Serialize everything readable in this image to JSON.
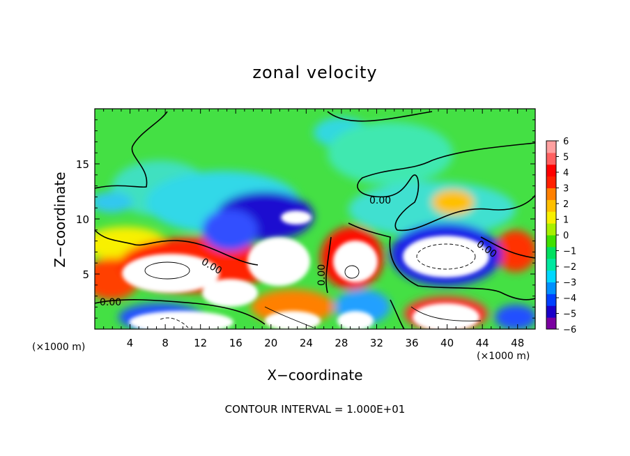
{
  "chart_data": {
    "type": "heatmap",
    "title": "zonal velocity",
    "xlabel": "X−coordinate",
    "ylabel": "Z−coordinate",
    "x_unit_label": "(×1000 m)",
    "x_ticks": [
      4,
      8,
      12,
      16,
      20,
      24,
      28,
      32,
      36,
      40,
      44,
      48
    ],
    "y_ticks": [
      5,
      10,
      15
    ],
    "xlim": [
      0,
      50
    ],
    "ylim": [
      0,
      20
    ],
    "colorbar": {
      "ticks": [
        6,
        5,
        4,
        3,
        2,
        1,
        0,
        -1,
        -2,
        -3,
        -4,
        -5,
        -6
      ],
      "tick_labels": [
        "6",
        "5",
        "4",
        "3",
        "2",
        "1",
        "0",
        "−1",
        "−2",
        "−3",
        "−4",
        "−5",
        "−6"
      ],
      "range": [
        -6,
        6
      ],
      "colors": [
        "#7a00a0",
        "#1a00c8",
        "#0040ff",
        "#0090ff",
        "#00d8ff",
        "#00e8a0",
        "#00e060",
        "#40e000",
        "#a8f000",
        "#f8f000",
        "#ffc000",
        "#ff8000",
        "#ff2000",
        "#ff0000",
        "#ff6060",
        "#ffa0a0"
      ]
    },
    "contour_label": "0.00",
    "contour_interval_text": "CONTOUR INTERVAL = 1.000E+01",
    "background_color": "#44e044",
    "extreme_color": "#ffffff"
  }
}
